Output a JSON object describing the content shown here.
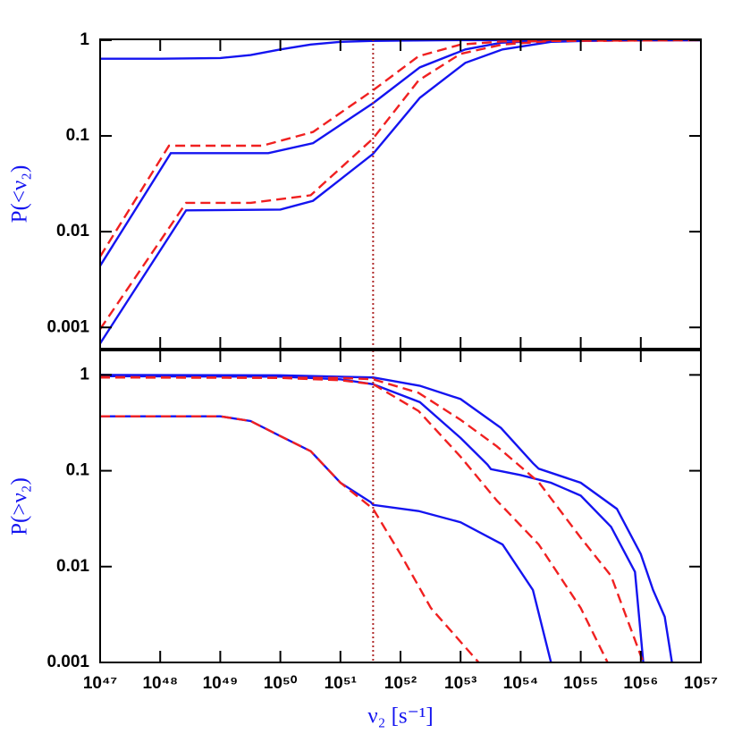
{
  "chart_data": [
    {
      "type": "line",
      "y_label": "P(<ν₂)",
      "log_x": true,
      "log_y": true,
      "xlim": [
        1e+47,
        1e+57
      ],
      "ylim": [
        0.0006,
        1.02
      ],
      "yticks": [
        0.001,
        0.01,
        0.1,
        1
      ],
      "vline": {
        "x": 3.5e+51,
        "color": "#b02828"
      },
      "series": [
        {
          "color": "#1414f0",
          "linestyle": "solid",
          "x": [
            1e+47,
            1e+48,
            1e+49,
            3.2e+49,
            1e+50,
            3.2e+50,
            1e+51,
            3.2e+51,
            1e+52,
            1e+53,
            1e+57
          ],
          "values": [
            0.64,
            0.64,
            0.65,
            0.7,
            0.8,
            0.9,
            0.96,
            0.98,
            0.99,
            1,
            1
          ]
        },
        {
          "color": "#1414f0",
          "linestyle": "solid",
          "x": [
            1e+47,
            1.5e+48,
            6.3e+49,
            3.5e+50,
            3.5e+51,
            2.1e+52,
            1.2e+53,
            4.7e+53,
            3.2e+54,
            1e+57
          ],
          "values": [
            0.0044,
            0.066,
            0.066,
            0.084,
            0.22,
            0.52,
            0.8,
            0.94,
            0.99,
            1
          ]
        },
        {
          "color": "#f02020",
          "linestyle": "dashed",
          "x": [
            1e+47,
            1.4e+48,
            5e+49,
            3.5e+50,
            3.5e+51,
            2e+52,
            1e+53,
            5e+53,
            1e+57
          ],
          "values": [
            0.0055,
            0.079,
            0.079,
            0.11,
            0.3,
            0.68,
            0.9,
            0.97,
            1
          ]
        },
        {
          "color": "#1414f0",
          "linestyle": "solid",
          "x": [
            1e+47,
            2.7e+48,
            1e+50,
            3.5e+50,
            3.5e+51,
            2.1e+52,
            1.2e+53,
            5e+53,
            3.2e+54,
            3.2e+55,
            1e+57
          ],
          "values": [
            0.00068,
            0.0167,
            0.017,
            0.021,
            0.065,
            0.25,
            0.58,
            0.8,
            0.96,
            1,
            1
          ]
        },
        {
          "color": "#f02020",
          "linestyle": "dashed",
          "x": [
            1e+47,
            2.7e+48,
            3.2e+49,
            3.2e+50,
            3.5e+51,
            2e+52,
            1e+53,
            5e+53,
            3.2e+54,
            1e+57
          ],
          "values": [
            0.00096,
            0.02,
            0.02,
            0.024,
            0.094,
            0.38,
            0.72,
            0.9,
            0.98,
            1
          ]
        }
      ]
    },
    {
      "type": "line",
      "y_label": "P(>ν₂)",
      "x_label": "ν₂ [s⁻¹]",
      "log_x": true,
      "log_y": true,
      "xlim": [
        1e+47,
        1e+57
      ],
      "ylim": [
        0.001,
        1.8
      ],
      "yticks": [
        0.001,
        0.01,
        0.1,
        1
      ],
      "xticks": [
        {
          "value": 1e+47,
          "label": "10⁴⁷"
        },
        {
          "value": 1e+48,
          "label": "10⁴⁸"
        },
        {
          "value": 1e+49,
          "label": "10⁴⁹"
        },
        {
          "value": 1e+50,
          "label": "10⁵⁰"
        },
        {
          "value": 1e+51,
          "label": "10⁵¹"
        },
        {
          "value": 1e+52,
          "label": "10⁵²"
        },
        {
          "value": 1e+53,
          "label": "10⁵³"
        },
        {
          "value": 1e+54,
          "label": "10⁵⁴"
        },
        {
          "value": 1e+55,
          "label": "10⁵⁵"
        },
        {
          "value": 1e+56,
          "label": "10⁵⁶"
        },
        {
          "value": 1e+57,
          "label": "10⁵⁷"
        }
      ],
      "vline": {
        "x": 3.5e+51,
        "color": "#b02828"
      },
      "series": [
        {
          "color": "#1414f0",
          "linestyle": "solid",
          "x": [
            1e+47,
            1e+50,
            3.5e+51,
            2.1e+52,
            1e+53,
            4.7e+53,
            1.6e+54,
            2e+54,
            1e+55,
            4e+55,
            1e+56,
            1.6e+56,
            2.5e+56,
            3.3e+56
          ],
          "values": [
            1,
            0.99,
            0.94,
            0.77,
            0.56,
            0.28,
            0.12,
            0.105,
            0.075,
            0.04,
            0.0135,
            0.0057,
            0.003,
            0.001
          ]
        },
        {
          "color": "#1414f0",
          "linestyle": "solid",
          "x": [
            1e+47,
            1e+50,
            1e+51,
            3.5e+51,
            2.1e+52,
            1e+53,
            2.8e+53,
            3.2e+53,
            1e+54,
            3.2e+54,
            1e+55,
            3.2e+55,
            8e+55,
            1.1e+56
          ],
          "values": [
            0.97,
            0.96,
            0.9,
            0.8,
            0.52,
            0.22,
            0.116,
            0.104,
            0.09,
            0.075,
            0.055,
            0.026,
            0.0088,
            0.001
          ]
        },
        {
          "color": "#1414f0",
          "linestyle": "solid",
          "x": [
            1e+47,
            1e+49,
            3.2e+49,
            1e+50,
            3.2e+50,
            1e+51,
            3.2e+51,
            3.5e+51,
            2e+52,
            1e+53,
            5e+53,
            1.6e+54,
            3.2e+54
          ],
          "values": [
            0.37,
            0.37,
            0.33,
            0.23,
            0.16,
            0.075,
            0.047,
            0.044,
            0.038,
            0.029,
            0.017,
            0.0057,
            0.001
          ]
        },
        {
          "color": "#f02020",
          "linestyle": "dashed",
          "x": [
            1e+47,
            1e+51,
            3.5e+51,
            2e+52,
            1e+53,
            4e+53,
            2e+54,
            1e+55,
            3.2e+55,
            1.1e+56
          ],
          "values": [
            0.95,
            0.93,
            0.9,
            0.65,
            0.34,
            0.18,
            0.076,
            0.02,
            0.008,
            0.001
          ]
        },
        {
          "color": "#f02020",
          "linestyle": "dashed",
          "x": [
            1e+47,
            1e+50,
            1e+51,
            3.5e+51,
            2e+52,
            1e+53,
            4e+53,
            2e+54,
            1e+55,
            2.8e+55
          ],
          "values": [
            0.94,
            0.93,
            0.88,
            0.8,
            0.42,
            0.14,
            0.049,
            0.017,
            0.0037,
            0.001
          ]
        },
        {
          "color": "#f02020",
          "linestyle": "dashed",
          "x": [
            1e+47,
            1e+49,
            3.2e+49,
            1e+50,
            3.2e+50,
            1e+51,
            3.5e+51,
            1e+52,
            3.2e+52,
            2e+53
          ],
          "values": [
            0.37,
            0.37,
            0.33,
            0.23,
            0.16,
            0.075,
            0.04,
            0.0135,
            0.0037,
            0.001
          ]
        }
      ]
    }
  ]
}
